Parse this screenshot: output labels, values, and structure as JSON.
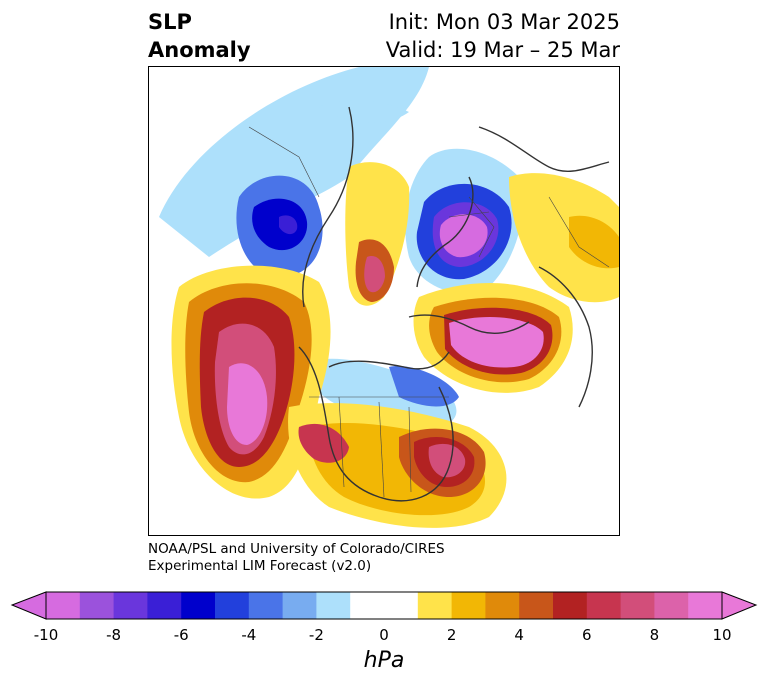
{
  "header": {
    "title_line1": "SLP",
    "title_line2": "Anomaly",
    "init_text": "Init: Mon 03 Mar 2025",
    "valid_text": "Valid: 19 Mar – 25 Mar"
  },
  "credit": {
    "line1": "NOAA/PSL and University of Colorado/CIRES",
    "line2": "Experimental LIM Forecast (v2.0)"
  },
  "colorbar": {
    "unit": "hPa",
    "ticks": [
      "-10",
      "-8",
      "-6",
      "-4",
      "-2",
      "0",
      "2",
      "4",
      "6",
      "8",
      "10"
    ],
    "colors": [
      "#d66be0",
      "#9b52dc",
      "#6a36dc",
      "#3a1fd6",
      "#0000cc",
      "#2240dc",
      "#4a74e8",
      "#78acf0",
      "#ade0fb",
      "#ffffff",
      "#ffffff",
      "#ffe34a",
      "#f2b705",
      "#e08a0a",
      "#c8561a",
      "#b22222",
      "#c7354f",
      "#d24e7a",
      "#dc62aa",
      "#e878d8"
    ]
  },
  "map": {
    "projection": "north-polar-stereographic",
    "field": "SLP Anomaly",
    "features": [
      {
        "name": "north-pacific-high",
        "sign": "positive",
        "peak": 10
      },
      {
        "name": "eastern-us-high",
        "sign": "positive",
        "peak": 8
      },
      {
        "name": "western-us-high",
        "sign": "positive",
        "peak": 8
      },
      {
        "name": "north-atlantic-high",
        "sign": "positive",
        "peak": 10
      },
      {
        "name": "arctic-high",
        "sign": "positive",
        "peak": 8
      },
      {
        "name": "siberia-low",
        "sign": "negative",
        "peak": -10
      },
      {
        "name": "scandinavia-low",
        "sign": "negative",
        "peak": -6
      },
      {
        "name": "hudson-bay-low",
        "sign": "negative",
        "peak": -4
      }
    ]
  }
}
